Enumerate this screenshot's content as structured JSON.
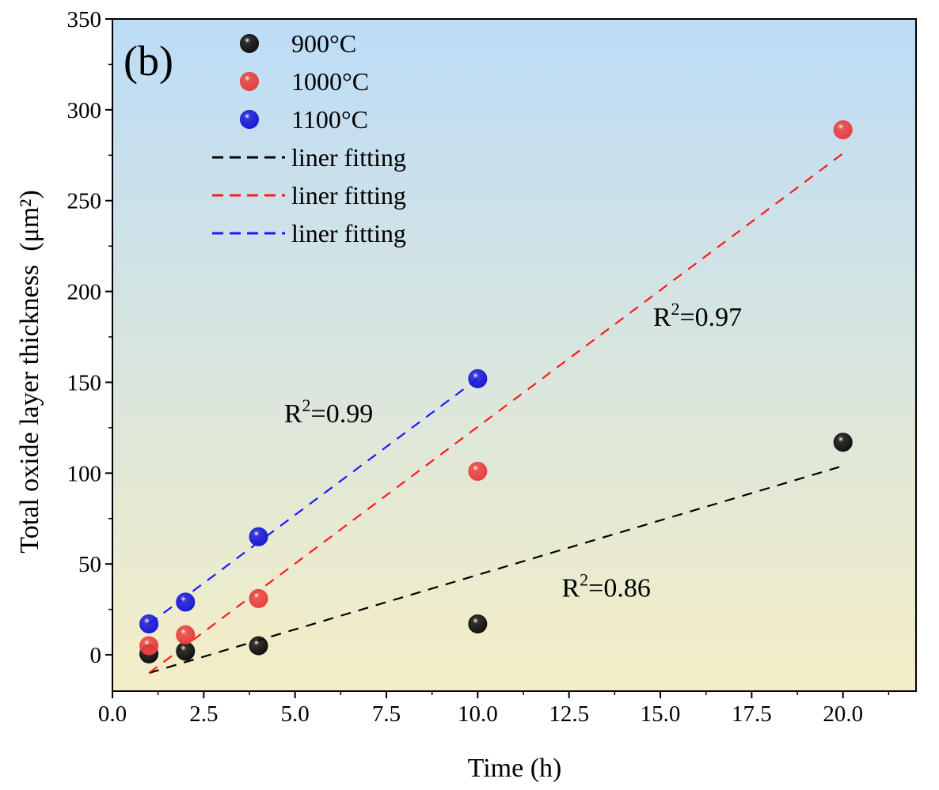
{
  "chart_data": {
    "type": "scatter",
    "panel_label": "(b)",
    "xlabel": "Time (h)",
    "ylabel": "Total oxide layer thickness (μm²)",
    "xlim": [
      0,
      22
    ],
    "ylim": [
      -20,
      350
    ],
    "xticks": [
      0.0,
      2.5,
      5.0,
      7.5,
      10.0,
      12.5,
      15.0,
      17.5,
      20.0
    ],
    "xtick_labels": [
      "0.0",
      "2.5",
      "5.0",
      "7.5",
      "10.0",
      "12.5",
      "15.0",
      "17.5",
      "20.0"
    ],
    "yticks": [
      0,
      50,
      100,
      150,
      200,
      250,
      300,
      350
    ],
    "ytick_labels": [
      "0",
      "50",
      "100",
      "150",
      "200",
      "250",
      "300",
      "350"
    ],
    "background_gradient": [
      "#bcdcf7",
      "#f4eec6"
    ],
    "series": [
      {
        "name": "900°C",
        "color": "#111111",
        "x": [
          1,
          2,
          4,
          10,
          20
        ],
        "y": [
          0.5,
          2,
          5,
          17,
          117
        ]
      },
      {
        "name": "1000°C",
        "color": "#e8413f",
        "x": [
          1,
          2,
          4,
          10,
          20
        ],
        "y": [
          5,
          11,
          31,
          101,
          289
        ]
      },
      {
        "name": "1100°C",
        "color": "#1a1ad8",
        "x": [
          1,
          2,
          4,
          10
        ],
        "y": [
          17,
          29,
          65,
          152
        ]
      }
    ],
    "fits": [
      {
        "name": "liner fitting",
        "color": "#000000",
        "x": [
          1,
          20
        ],
        "y": [
          -10,
          104
        ],
        "r2_label": "R",
        "r2_sup": "2",
        "r2_value": "=0.86",
        "r2_at": [
          12.3,
          32
        ]
      },
      {
        "name": "liner fitting",
        "color": "#ff1a1a",
        "x": [
          1,
          20
        ],
        "y": [
          -10,
          276
        ],
        "r2_label": "R",
        "r2_sup": "2",
        "r2_value": "=0.97",
        "r2_at": [
          14.8,
          181
        ]
      },
      {
        "name": "liner fitting",
        "color": "#1a1aff",
        "x": [
          1,
          10
        ],
        "y": [
          17,
          152
        ],
        "r2_label": "R",
        "r2_sup": "2",
        "r2_value": "=0.99",
        "r2_at": [
          4.7,
          128
        ]
      }
    ],
    "legend_position": "top-left"
  }
}
